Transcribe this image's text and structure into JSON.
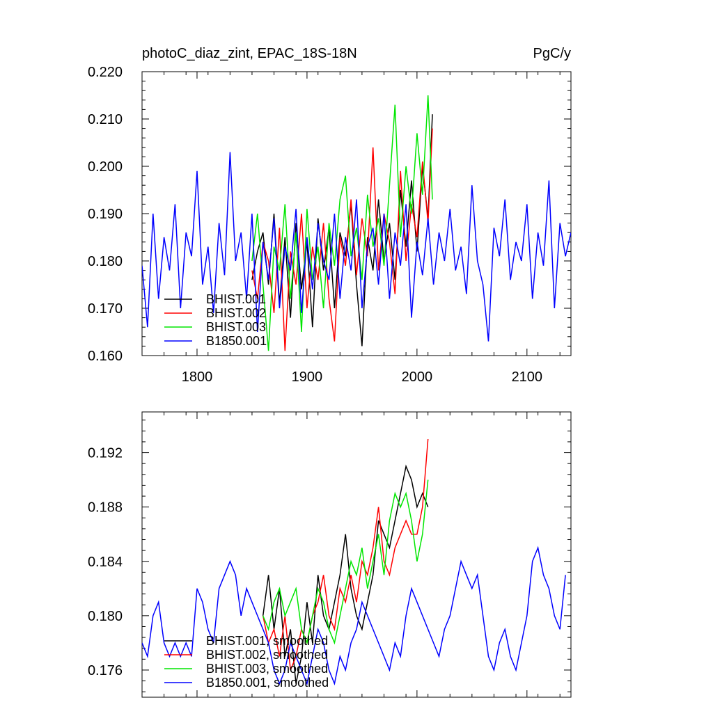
{
  "header": {
    "title": "photoC_diaz_zint, EPAC_18S-18N",
    "units": "PgC/y"
  },
  "colors": {
    "BHIST.001": "#000000",
    "BHIST.002": "#ff0000",
    "BHIST.003": "#00e600",
    "B1850.001": "#0000ff"
  },
  "chart_data": [
    {
      "type": "line",
      "panel": "raw",
      "xlim": [
        1750,
        2140
      ],
      "ylim": [
        0.16,
        0.22
      ],
      "x_ticks": [
        1800,
        1900,
        2000,
        2100
      ],
      "x_tick_labels": [
        "1800",
        "1900",
        "2000",
        "2100"
      ],
      "y_ticks": [
        0.16,
        0.17,
        0.18,
        0.19,
        0.2,
        0.21,
        0.22
      ],
      "y_tick_labels": [
        "0.160",
        "0.170",
        "0.180",
        "0.190",
        "0.200",
        "0.210",
        "0.220"
      ],
      "legend_position": "bottom-left",
      "series": [
        {
          "name": "BHIST.001",
          "color": "#000000",
          "x": [
            1850,
            1855,
            1860,
            1865,
            1870,
            1875,
            1880,
            1885,
            1890,
            1895,
            1900,
            1905,
            1910,
            1915,
            1920,
            1925,
            1930,
            1935,
            1940,
            1945,
            1950,
            1955,
            1960,
            1965,
            1970,
            1975,
            1980,
            1985,
            1990,
            1995,
            2000,
            2005,
            2010,
            2014
          ],
          "y": [
            0.176,
            0.182,
            0.186,
            0.175,
            0.19,
            0.171,
            0.185,
            0.168,
            0.188,
            0.174,
            0.184,
            0.166,
            0.189,
            0.178,
            0.187,
            0.17,
            0.186,
            0.181,
            0.192,
            0.175,
            0.162,
            0.185,
            0.178,
            0.193,
            0.18,
            0.188,
            0.176,
            0.195,
            0.183,
            0.197,
            0.182,
            0.2,
            0.189,
            0.211
          ]
        },
        {
          "name": "BHIST.002",
          "color": "#ff0000",
          "x": [
            1850,
            1855,
            1860,
            1865,
            1870,
            1875,
            1880,
            1885,
            1890,
            1895,
            1900,
            1905,
            1910,
            1915,
            1920,
            1925,
            1930,
            1935,
            1940,
            1945,
            1950,
            1955,
            1960,
            1965,
            1970,
            1975,
            1980,
            1985,
            1990,
            1995,
            2000,
            2005,
            2010,
            2014
          ],
          "y": [
            0.178,
            0.172,
            0.184,
            0.18,
            0.169,
            0.187,
            0.161,
            0.182,
            0.175,
            0.19,
            0.17,
            0.183,
            0.176,
            0.188,
            0.172,
            0.163,
            0.185,
            0.179,
            0.193,
            0.177,
            0.189,
            0.181,
            0.204,
            0.178,
            0.19,
            0.184,
            0.173,
            0.199,
            0.18,
            0.192,
            0.185,
            0.201,
            0.188,
            0.208
          ]
        },
        {
          "name": "BHIST.003",
          "color": "#00e600",
          "x": [
            1850,
            1855,
            1860,
            1865,
            1870,
            1875,
            1880,
            1885,
            1890,
            1895,
            1900,
            1905,
            1910,
            1915,
            1920,
            1925,
            1930,
            1935,
            1940,
            1945,
            1950,
            1955,
            1960,
            1965,
            1970,
            1975,
            1980,
            1985,
            1990,
            1995,
            2000,
            2005,
            2010,
            2014
          ],
          "y": [
            0.18,
            0.19,
            0.175,
            0.161,
            0.183,
            0.178,
            0.192,
            0.172,
            0.186,
            0.165,
            0.191,
            0.176,
            0.183,
            0.17,
            0.188,
            0.179,
            0.193,
            0.198,
            0.181,
            0.187,
            0.176,
            0.194,
            0.183,
            0.189,
            0.179,
            0.196,
            0.213,
            0.185,
            0.2,
            0.19,
            0.207,
            0.194,
            0.215,
            0.193
          ]
        },
        {
          "name": "B1850.001",
          "color": "#0000ff",
          "x": [
            1750,
            1755,
            1760,
            1765,
            1770,
            1775,
            1780,
            1785,
            1790,
            1795,
            1800,
            1805,
            1810,
            1815,
            1820,
            1825,
            1830,
            1835,
            1840,
            1845,
            1850,
            1855,
            1860,
            1865,
            1870,
            1875,
            1880,
            1885,
            1890,
            1895,
            1900,
            1905,
            1910,
            1915,
            1920,
            1925,
            1930,
            1935,
            1940,
            1945,
            1950,
            1955,
            1960,
            1965,
            1970,
            1975,
            1980,
            1985,
            1990,
            1995,
            2000,
            2005,
            2010,
            2015,
            2020,
            2025,
            2030,
            2035,
            2040,
            2045,
            2050,
            2055,
            2060,
            2065,
            2070,
            2075,
            2080,
            2085,
            2090,
            2095,
            2100,
            2105,
            2110,
            2115,
            2120,
            2125,
            2130,
            2135,
            2140
          ],
          "y": [
            0.179,
            0.166,
            0.19,
            0.172,
            0.185,
            0.178,
            0.192,
            0.17,
            0.186,
            0.181,
            0.199,
            0.175,
            0.183,
            0.169,
            0.188,
            0.177,
            0.203,
            0.18,
            0.186,
            0.172,
            0.19,
            0.165,
            0.184,
            0.176,
            0.189,
            0.17,
            0.183,
            0.178,
            0.191,
            0.169,
            0.185,
            0.174,
            0.188,
            0.18,
            0.176,
            0.19,
            0.172,
            0.185,
            0.178,
            0.193,
            0.17,
            0.183,
            0.187,
            0.175,
            0.19,
            0.172,
            0.186,
            0.179,
            0.192,
            0.168,
            0.184,
            0.177,
            0.189,
            0.175,
            0.186,
            0.18,
            0.191,
            0.178,
            0.183,
            0.173,
            0.196,
            0.18,
            0.175,
            0.163,
            0.187,
            0.181,
            0.193,
            0.176,
            0.184,
            0.18,
            0.192,
            0.172,
            0.186,
            0.179,
            0.197,
            0.17,
            0.188,
            0.181,
            0.186
          ]
        }
      ]
    },
    {
      "type": "line",
      "panel": "smoothed",
      "xlim": [
        1750,
        2140
      ],
      "ylim": [
        0.174,
        0.195
      ],
      "x_ticks": [
        1800,
        1900,
        2000,
        2100
      ],
      "y_ticks": [
        0.176,
        0.18,
        0.184,
        0.188,
        0.192
      ],
      "y_tick_labels": [
        "0.176",
        "0.180",
        "0.184",
        "0.188",
        "0.192"
      ],
      "legend_position": "bottom-left",
      "series": [
        {
          "name": "BHIST.001, smoothed",
          "color": "#000000",
          "x": [
            1860,
            1865,
            1870,
            1875,
            1880,
            1885,
            1890,
            1895,
            1900,
            1905,
            1910,
            1915,
            1920,
            1925,
            1930,
            1935,
            1940,
            1945,
            1950,
            1955,
            1960,
            1965,
            1970,
            1975,
            1980,
            1985,
            1990,
            1995,
            2000,
            2005,
            2010
          ],
          "y": [
            0.18,
            0.183,
            0.179,
            0.182,
            0.177,
            0.179,
            0.175,
            0.177,
            0.181,
            0.178,
            0.183,
            0.18,
            0.179,
            0.181,
            0.183,
            0.186,
            0.182,
            0.18,
            0.179,
            0.181,
            0.183,
            0.187,
            0.186,
            0.185,
            0.187,
            0.189,
            0.191,
            0.19,
            0.188,
            0.189,
            0.188
          ]
        },
        {
          "name": "BHIST.002, smoothed",
          "color": "#ff0000",
          "x": [
            1860,
            1865,
            1870,
            1875,
            1880,
            1885,
            1890,
            1895,
            1900,
            1905,
            1910,
            1915,
            1920,
            1925,
            1930,
            1935,
            1940,
            1945,
            1950,
            1955,
            1960,
            1965,
            1970,
            1975,
            1980,
            1985,
            1990,
            1995,
            2000,
            2005,
            2010
          ],
          "y": [
            0.18,
            0.178,
            0.179,
            0.177,
            0.18,
            0.176,
            0.177,
            0.179,
            0.178,
            0.18,
            0.181,
            0.183,
            0.18,
            0.179,
            0.182,
            0.181,
            0.183,
            0.181,
            0.184,
            0.183,
            0.185,
            0.188,
            0.184,
            0.183,
            0.185,
            0.186,
            0.187,
            0.186,
            0.186,
            0.188,
            0.193
          ]
        },
        {
          "name": "BHIST.003, smoothed",
          "color": "#00e600",
          "x": [
            1860,
            1865,
            1870,
            1875,
            1880,
            1885,
            1890,
            1895,
            1900,
            1905,
            1910,
            1915,
            1920,
            1925,
            1930,
            1935,
            1940,
            1945,
            1950,
            1955,
            1960,
            1965,
            1970,
            1975,
            1980,
            1985,
            1990,
            1995,
            2000,
            2005,
            2010
          ],
          "y": [
            0.18,
            0.179,
            0.181,
            0.182,
            0.18,
            0.181,
            0.182,
            0.179,
            0.178,
            0.18,
            0.182,
            0.181,
            0.179,
            0.178,
            0.18,
            0.182,
            0.184,
            0.183,
            0.185,
            0.182,
            0.184,
            0.186,
            0.183,
            0.187,
            0.189,
            0.188,
            0.189,
            0.187,
            0.184,
            0.186,
            0.19
          ]
        },
        {
          "name": "B1850.001, smoothed",
          "color": "#0000ff",
          "x": [
            1750,
            1755,
            1760,
            1765,
            1770,
            1775,
            1780,
            1785,
            1790,
            1795,
            1800,
            1805,
            1810,
            1815,
            1820,
            1825,
            1830,
            1835,
            1840,
            1845,
            1850,
            1855,
            1860,
            1865,
            1870,
            1875,
            1880,
            1885,
            1890,
            1895,
            1900,
            1905,
            1910,
            1915,
            1920,
            1925,
            1930,
            1935,
            1940,
            1945,
            1950,
            1955,
            1960,
            1965,
            1970,
            1975,
            1980,
            1985,
            1990,
            1995,
            2000,
            2005,
            2010,
            2015,
            2020,
            2025,
            2030,
            2035,
            2040,
            2045,
            2050,
            2055,
            2060,
            2065,
            2070,
            2075,
            2080,
            2085,
            2090,
            2095,
            2100,
            2105,
            2110,
            2115,
            2120,
            2125,
            2130,
            2135
          ],
          "y": [
            0.178,
            0.177,
            0.18,
            0.181,
            0.178,
            0.177,
            0.178,
            0.177,
            0.178,
            0.177,
            0.182,
            0.181,
            0.179,
            0.178,
            0.182,
            0.183,
            0.184,
            0.183,
            0.18,
            0.182,
            0.181,
            0.18,
            0.179,
            0.178,
            0.176,
            0.175,
            0.176,
            0.178,
            0.177,
            0.176,
            0.175,
            0.177,
            0.179,
            0.178,
            0.176,
            0.175,
            0.177,
            0.176,
            0.178,
            0.179,
            0.181,
            0.18,
            0.179,
            0.178,
            0.177,
            0.176,
            0.178,
            0.177,
            0.18,
            0.182,
            0.181,
            0.18,
            0.179,
            0.178,
            0.177,
            0.179,
            0.18,
            0.182,
            0.184,
            0.183,
            0.182,
            0.183,
            0.18,
            0.177,
            0.176,
            0.178,
            0.179,
            0.177,
            0.176,
            0.178,
            0.18,
            0.184,
            0.185,
            0.183,
            0.182,
            0.18,
            0.179,
            0.183
          ]
        }
      ]
    }
  ]
}
